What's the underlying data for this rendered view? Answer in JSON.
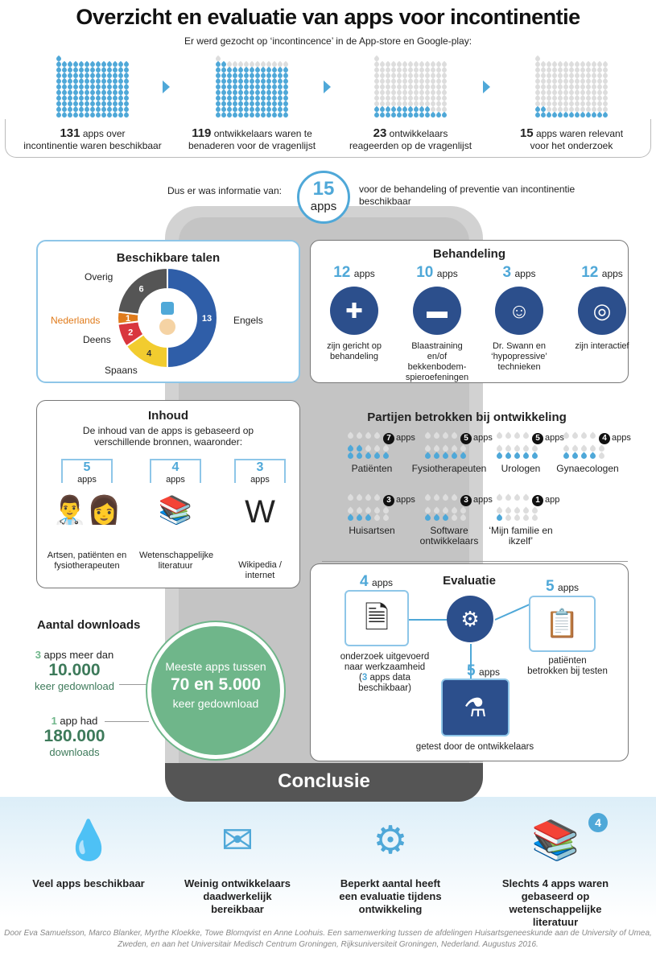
{
  "title": "Overzicht en evaluatie van apps voor incontinentie",
  "subtitle": "Er werd gezocht op ‘incontincence’ in de App-store en Google-play:",
  "funnel": [
    {
      "num": "131",
      "text1": " apps over",
      "text2": "incontinentie waren beschikbaar",
      "highlighted": 131
    },
    {
      "num": "119",
      "text1": " ontwikkelaars waren te",
      "text2": "benaderen voor de vragenlijst",
      "highlighted": 119
    },
    {
      "num": "23",
      "text1": " ontwikkelaars",
      "text2": "reageerden op de vragenlijst",
      "highlighted": 23
    },
    {
      "num": "15",
      "text1": " apps waren relevant",
      "text2": "voor het onderzoek",
      "highlighted": 15
    }
  ],
  "summary": {
    "left": "Dus er was informatie van:",
    "num": "15",
    "unit": "apps",
    "right": "voor de behandeling of preventie van incontinentie beschikbaar"
  },
  "talen": {
    "title": "Beschikbare talen",
    "slices": [
      {
        "label": "Engels",
        "value": 13,
        "color": "#2f5ea8"
      },
      {
        "label": "Spaans",
        "value": 4,
        "color": "#f2cc2f"
      },
      {
        "label": "Deens",
        "value": 2,
        "color": "#d9363e"
      },
      {
        "label": "Nederlands",
        "value": 1,
        "color": "#e07b1b"
      },
      {
        "label": "Overig",
        "value": 6,
        "color": "#555555"
      }
    ]
  },
  "behandeling": {
    "title": "Behandeling",
    "unit": "apps",
    "items": [
      {
        "num": "12",
        "label": "zijn gericht op behandeling",
        "icon": "first-aid-kit-icon",
        "glyph": "✚"
      },
      {
        "num": "10",
        "label": "Blaastraining en/of bekkenbodem-spieroefeningen",
        "icon": "dumbbell-icon",
        "glyph": "▬"
      },
      {
        "num": "3",
        "label": "Dr. Swann en ‘hypopressive’ technieken",
        "icon": "person-exercise-icon",
        "glyph": "☺"
      },
      {
        "num": "12",
        "label": "zijn interactief",
        "icon": "cursor-click-icon",
        "glyph": "◎"
      }
    ]
  },
  "inhoud": {
    "title": "Inhoud",
    "intro": "De inhoud van de apps is gebaseerd op verschillende bronnen, waaronder:",
    "unit": "apps",
    "items": [
      {
        "num": "5",
        "label": "Artsen, patiënten en fysiotherapeuten",
        "icon": "doctors-icon"
      },
      {
        "num": "4",
        "label": "Wetenschappelijke literatuur",
        "icon": "books-icon"
      },
      {
        "num": "3",
        "label": "Wikipedia / internet",
        "icon": "wikipedia-icon"
      }
    ]
  },
  "partijen": {
    "title": "Partijen betrokken bij ontwikkeling",
    "items": [
      {
        "count": 7,
        "unit": "apps",
        "label": "Patiënten"
      },
      {
        "count": 5,
        "unit": "apps",
        "label": "Fysiotherapeuten"
      },
      {
        "count": 5,
        "unit": "apps",
        "label": "Urologen"
      },
      {
        "count": 4,
        "unit": "apps",
        "label": "Gynaecologen"
      },
      {
        "count": 3,
        "unit": "apps",
        "label": "Huisartsen"
      },
      {
        "count": 3,
        "unit": "apps",
        "label": "Software ontwikkelaars"
      },
      {
        "count": 1,
        "unit": "app",
        "label": "‘Mijn familie en ikzelf’"
      }
    ]
  },
  "downloads": {
    "title": "Aantal downloads",
    "a_num": "3",
    "a_text": " apps meer dan",
    "a_big": "10.000",
    "a_after": "keer gedownload",
    "b_num": "1",
    "b_text": " app had",
    "b_big": "180.000",
    "b_after": "downloads",
    "circle1": "Meeste apps tussen",
    "circle2": "70 en 5.000",
    "circle3": "keer gedownload"
  },
  "evaluatie": {
    "title": "Evaluatie",
    "unit": "apps",
    "items": [
      {
        "num": "4",
        "label": "onderzoek uitgevoerd naar werkzaamheid",
        "note_num": "3",
        "note": " apps data beschikbaar)"
      },
      {
        "num": "5",
        "label": "patiënten betrokken bij testen"
      },
      {
        "num": "5",
        "label": "getest door de ontwikkelaars"
      }
    ]
  },
  "conclusie": {
    "title": "Conclusie",
    "items": [
      {
        "label": "Veel apps beschikbaar",
        "icon": "drops-icon"
      },
      {
        "label": "Weinig ontwikkelaars daadwerkelijk bereikbaar",
        "icon": "envelope-question-icon"
      },
      {
        "label": "Beperkt aantal heeft een evaluatie tijdens ontwikkeling",
        "icon": "gears-icon"
      },
      {
        "label": "Slechts 4 apps waren gebaseerd op wetenschappelijke literatuur",
        "icon": "books-icon",
        "badge": "4"
      }
    ]
  },
  "footer": "Door Eva Samuelsson, Marco Blanker, Myrthe Kloekke, Towe Blomqvist en Anne Loohuis. Een samenwerking tussen de afdelingen Huisartsgeneeskunde aan de University of Umea, Zweden, en aan het Universitair Medisch Centrum Groningen, Rijksuniversiteit Groningen, Nederland. Augustus 2016.",
  "colors": {
    "accent": "#4fa8d8",
    "navy": "#2c4f8c",
    "green": "#6fb68a",
    "gray": "#555555"
  }
}
